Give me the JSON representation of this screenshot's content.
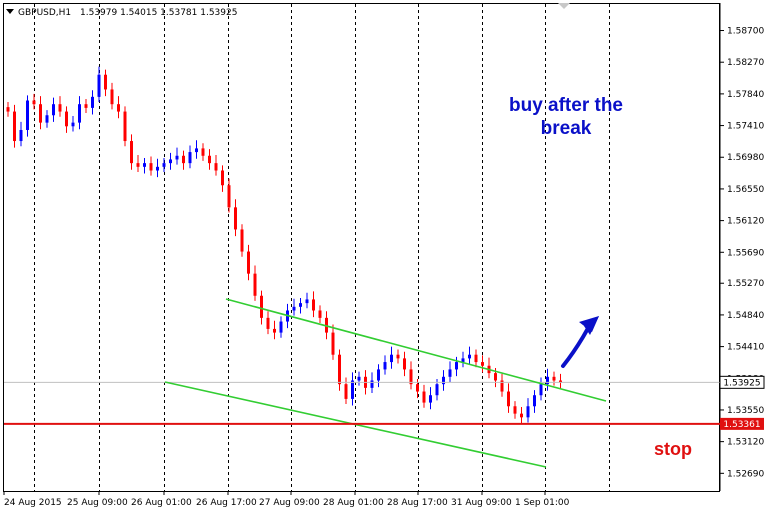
{
  "header": {
    "symbol": "GBPUSD,H1",
    "ohlc": "1.53979 1.54015 1.53781 1.53925"
  },
  "colors": {
    "bull": "#0000ff",
    "bear": "#ff0000",
    "channel": "#32cd32",
    "stop_line": "#e01010",
    "annotation": "#0a10c8",
    "grid": "#000000"
  },
  "annotations": {
    "buy_line1": "buy after the",
    "buy_line2": "break",
    "stop": "stop"
  },
  "price_tags": {
    "current": "1.53925",
    "stop": "1.53361"
  },
  "chart_data": {
    "type": "candlestick",
    "y_axis": {
      "min": 1.5245,
      "max": 1.5906,
      "ticks": [
        "1.58700",
        "1.58270",
        "1.57840",
        "1.57410",
        "1.56980",
        "1.56550",
        "1.56120",
        "1.55690",
        "1.55270",
        "1.54840",
        "1.54410",
        "1.53980",
        "1.53550",
        "1.53120",
        "1.52690"
      ]
    },
    "x_axis": {
      "labels": [
        "24 Aug 2015",
        "25 Aug 09:00",
        "26 Aug 01:00",
        "26 Aug 17:00",
        "27 Aug 09:00",
        "28 Aug 01:00",
        "28 Aug 17:00",
        "31 Aug 09:00",
        "1 Sep 01:00"
      ],
      "grid_dashed": true
    },
    "stop_level": 1.53361,
    "current_price": 1.53925,
    "channel_upper": [
      [
        1.5513,
        1.5385
      ]
    ],
    "channel_lower": [
      [
        1.54,
        1.5305
      ]
    ],
    "candles_close": [
      1.576,
      1.572,
      1.5735,
      1.5775,
      1.577,
      1.5745,
      1.5755,
      1.577,
      1.576,
      1.574,
      1.5745,
      1.577,
      1.5765,
      1.578,
      1.581,
      1.579,
      1.577,
      1.576,
      1.572,
      1.569,
      1.5685,
      1.569,
      1.568,
      1.5685,
      1.569,
      1.5695,
      1.57,
      1.569,
      1.5705,
      1.571,
      1.57,
      1.569,
      1.568,
      1.566,
      1.563,
      1.56,
      1.557,
      1.554,
      1.551,
      1.548,
      1.5465,
      1.546,
      1.5475,
      1.549,
      1.5495,
      1.55,
      1.5505,
      1.549,
      1.548,
      1.546,
      1.543,
      1.539,
      1.537,
      1.5395,
      1.54,
      1.5385,
      1.5395,
      1.541,
      1.542,
      1.543,
      1.5425,
      1.541,
      1.539,
      1.538,
      1.5365,
      1.5375,
      1.539,
      1.54,
      1.541,
      1.542,
      1.5425,
      1.543,
      1.542,
      1.5415,
      1.5405,
      1.5395,
      1.538,
      1.536,
      1.535,
      1.5345,
      1.536,
      1.5375,
      1.539,
      1.54,
      1.5395,
      1.5392
    ]
  }
}
